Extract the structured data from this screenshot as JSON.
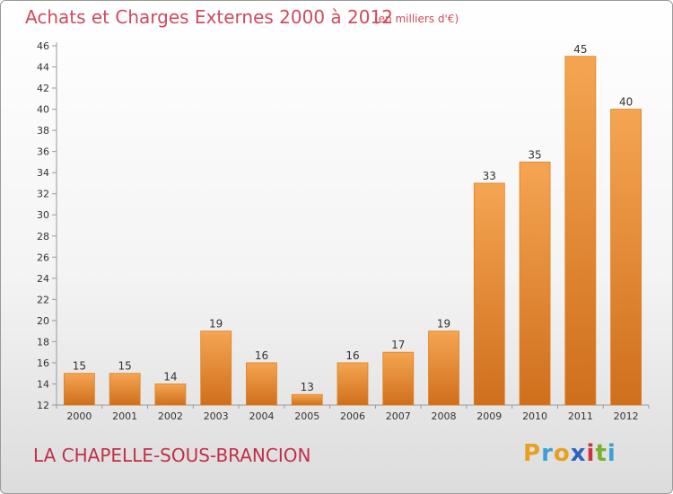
{
  "header": {
    "title": "Achats et Charges Externes 2000 à 2012",
    "subtitle": "(en milliers d'€)"
  },
  "footer": {
    "commune": "LA CHAPELLE-SOUS-BRANCION",
    "logo": {
      "letters": [
        "P",
        "r",
        "o",
        "x",
        "i",
        "t",
        "i"
      ],
      "colors": [
        "#e8a020",
        "#3aa0d8",
        "#e8a020",
        "#3060c0",
        "#d03040",
        "#78b030",
        "#3aa0d8"
      ]
    }
  },
  "chart_data": {
    "type": "bar",
    "categories": [
      "2000",
      "2001",
      "2002",
      "2003",
      "2004",
      "2005",
      "2006",
      "2007",
      "2008",
      "2009",
      "2010",
      "2011",
      "2012"
    ],
    "values": [
      15,
      15,
      14,
      19,
      16,
      13,
      16,
      17,
      19,
      33,
      35,
      45,
      40
    ],
    "ylim": [
      12,
      46
    ],
    "yticks": [
      12,
      14,
      16,
      18,
      20,
      22,
      24,
      26,
      28,
      30,
      32,
      34,
      36,
      38,
      40,
      42,
      44,
      46
    ],
    "grid": false,
    "colors": {
      "bar_light": "#f5a552",
      "bar_dark": "#cf6f1c",
      "bar_edge": "#e0801e"
    }
  }
}
